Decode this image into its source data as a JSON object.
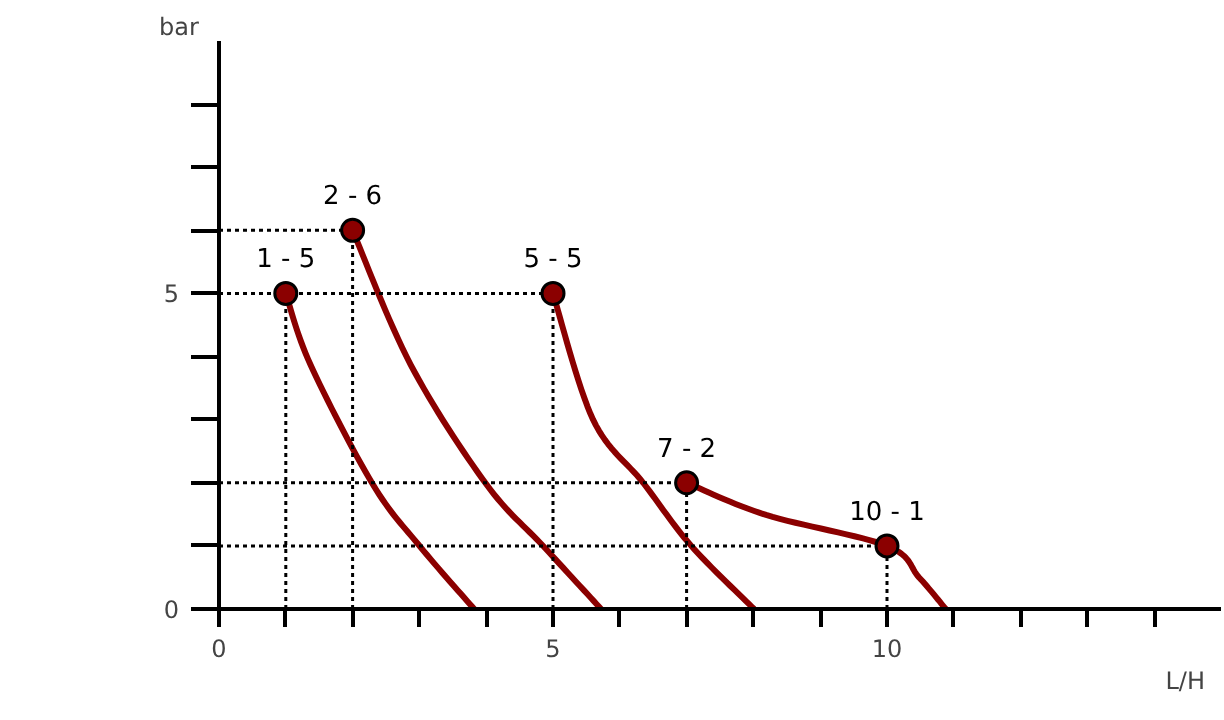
{
  "chart_data": {
    "type": "line",
    "xlabel": "L/H",
    "ylabel": "bar",
    "xlim": [
      0,
      15
    ],
    "ylim": [
      0,
      9
    ],
    "xticks": [
      0,
      {
        "value": 1,
        "label": null
      },
      {
        "value": 2,
        "label": null
      },
      {
        "value": 3,
        "label": null
      },
      {
        "value": 4,
        "label": null
      },
      5,
      {
        "value": 6,
        "label": null
      },
      {
        "value": 7,
        "label": null
      },
      {
        "value": 8,
        "label": null
      },
      {
        "value": 9,
        "label": null
      },
      10,
      {
        "value": 11,
        "label": null
      },
      {
        "value": 12,
        "label": null
      },
      {
        "value": 13,
        "label": null
      },
      {
        "value": 14,
        "label": null
      }
    ],
    "yticks": [
      0,
      {
        "value": 1,
        "label": null
      },
      {
        "value": 2,
        "label": null
      },
      {
        "value": 3,
        "label": null
      },
      {
        "value": 4,
        "label": null
      },
      5,
      {
        "value": 6,
        "label": null
      },
      {
        "value": 7,
        "label": null
      },
      {
        "value": 8,
        "label": null
      }
    ],
    "series": [
      {
        "color": "#8b0000",
        "marker": "none",
        "x": [
          1,
          1.37,
          2.3,
          3.01,
          3.82
        ],
        "values": [
          5,
          3.87,
          1.98,
          0.99,
          0
        ]
      },
      {
        "color": "#8b0000",
        "marker": "none",
        "x": [
          2,
          2.87,
          4.0,
          4.86,
          5.72
        ],
        "values": [
          6,
          3.87,
          1.98,
          0.99,
          0
        ]
      },
      {
        "color": "#8b0000",
        "marker": "none",
        "x": [
          5,
          5.6,
          6.35,
          7.07,
          8.01
        ],
        "values": [
          5,
          3.0,
          2.0,
          1.0,
          0
        ]
      },
      {
        "color": "#8b0000",
        "marker": "none",
        "x": [
          7,
          8.19,
          10,
          10.48,
          10.88
        ],
        "values": [
          2,
          1.49,
          1,
          0.5,
          0
        ]
      },
      {
        "type": "scatter",
        "marker": "circle",
        "color": "#8b0000",
        "x": [
          1,
          2,
          5,
          7,
          10
        ],
        "values": [
          5,
          6,
          5,
          2,
          1
        ]
      }
    ],
    "grid": false,
    "annotations": [
      {
        "text": "1 - 5",
        "x": 1,
        "y": 5
      },
      {
        "text": "2 - 6",
        "x": 2,
        "y": 6
      },
      {
        "text": "5 - 5",
        "x": 5,
        "y": 5
      },
      {
        "text": "7 - 2",
        "x": 7,
        "y": 2
      },
      {
        "text": "10 - 1",
        "x": 10,
        "y": 1
      }
    ]
  }
}
